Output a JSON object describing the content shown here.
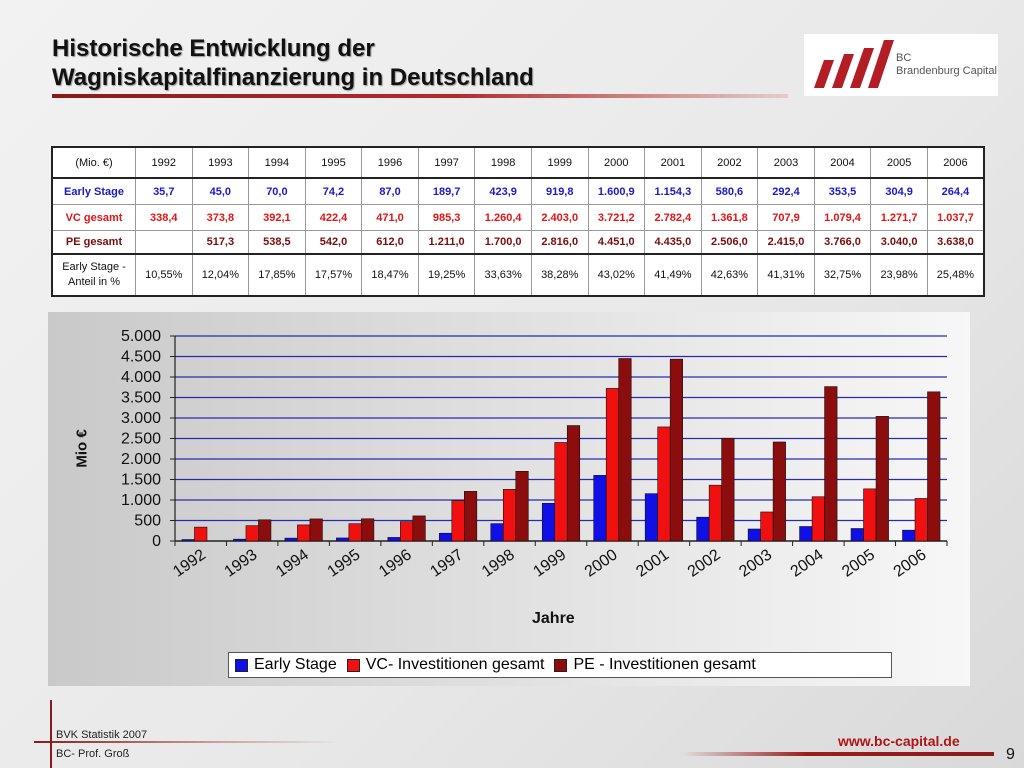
{
  "slide": {
    "title_line1": "Historische Entwicklung der",
    "title_line2": "Wagniskapitalfinanzierung in Deutschland",
    "logo": {
      "line1": "BC",
      "line2": "Brandenburg Capital",
      "colors": [
        "#b31d24",
        "#5a5a5a"
      ]
    },
    "footer": {
      "source1": "BVK Statistik 2007",
      "source2": "BC- Prof. Groß",
      "url": "www.bc-capital.de",
      "page_number": "9"
    }
  },
  "table": {
    "unit_header": "(Mio. €)",
    "years": [
      "1992",
      "1993",
      "1994",
      "1995",
      "1996",
      "1997",
      "1998",
      "1999",
      "2000",
      "2001",
      "2002",
      "2003",
      "2004",
      "2005",
      "2006"
    ],
    "rows": [
      {
        "label": "Early Stage",
        "color": "#1a1acc",
        "values": [
          "35,7",
          "45,0",
          "70,0",
          "74,2",
          "87,0",
          "189,7",
          "423,9",
          "919,8",
          "1.600,9",
          "1.154,3",
          "580,6",
          "292,4",
          "353,5",
          "304,9",
          "264,4"
        ]
      },
      {
        "label": "VC gesamt",
        "color": "#e01515",
        "values": [
          "338,4",
          "373,8",
          "392,1",
          "422,4",
          "471,0",
          "985,3",
          "1.260,4",
          "2.403,0",
          "3.721,2",
          "2.782,4",
          "1.361,8",
          "707,9",
          "1.079,4",
          "1.271,7",
          "1.037,7"
        ]
      },
      {
        "label": "PE gesamt",
        "color": "#7a0d0d",
        "values": [
          "",
          "517,3",
          "538,5",
          "542,0",
          "612,0",
          "1.211,0",
          "1.700,0",
          "2.816,0",
          "4.451,0",
          "4.435,0",
          "2.506,0",
          "2.415,0",
          "3.766,0",
          "3.040,0",
          "3.638,0"
        ]
      },
      {
        "label": "Early Stage - Anteil in %",
        "color": "#111111",
        "values": [
          "10,55%",
          "12,04%",
          "17,85%",
          "17,57%",
          "18,47%",
          "19,25%",
          "33,63%",
          "38,28%",
          "43,02%",
          "41,49%",
          "42,63%",
          "41,31%",
          "32,75%",
          "23,98%",
          "25,48%"
        ]
      }
    ]
  },
  "chart_data": {
    "type": "bar",
    "title": "",
    "xlabel": "Jahre",
    "ylabel": "Mio €",
    "ylim": [
      0,
      5000
    ],
    "yticks": [
      0,
      500,
      1000,
      1500,
      2000,
      2500,
      3000,
      3500,
      4000,
      4500,
      5000
    ],
    "ytick_labels": [
      "0",
      "500",
      "1.000",
      "1.500",
      "2.000",
      "2.500",
      "3.000",
      "3.500",
      "4.000",
      "4.500",
      "5.000"
    ],
    "grid": true,
    "legend_position": "bottom",
    "categories": [
      "1992",
      "1993",
      "1994",
      "1995",
      "1996",
      "1997",
      "1998",
      "1999",
      "2000",
      "2001",
      "2002",
      "2003",
      "2004",
      "2005",
      "2006"
    ],
    "series": [
      {
        "name": "Early Stage",
        "color": "#1010e6",
        "values": [
          35.7,
          45.0,
          70.0,
          74.2,
          87.0,
          189.7,
          423.9,
          919.8,
          1600.9,
          1154.3,
          580.6,
          292.4,
          353.5,
          304.9,
          264.4
        ]
      },
      {
        "name": "VC- Investitionen gesamt",
        "color": "#f01010",
        "values": [
          338.4,
          373.8,
          392.1,
          422.4,
          471.0,
          985.3,
          1260.4,
          2403.0,
          3721.2,
          2782.4,
          1361.8,
          707.9,
          1079.4,
          1271.7,
          1037.7
        ]
      },
      {
        "name": "PE - Investitionen gesamt",
        "color": "#8b0d0d",
        "values": [
          null,
          517.3,
          538.5,
          542.0,
          612.0,
          1211.0,
          1700.0,
          2816.0,
          4451.0,
          4435.0,
          2506.0,
          2415.0,
          3766.0,
          3040.0,
          3638.0
        ]
      }
    ]
  }
}
